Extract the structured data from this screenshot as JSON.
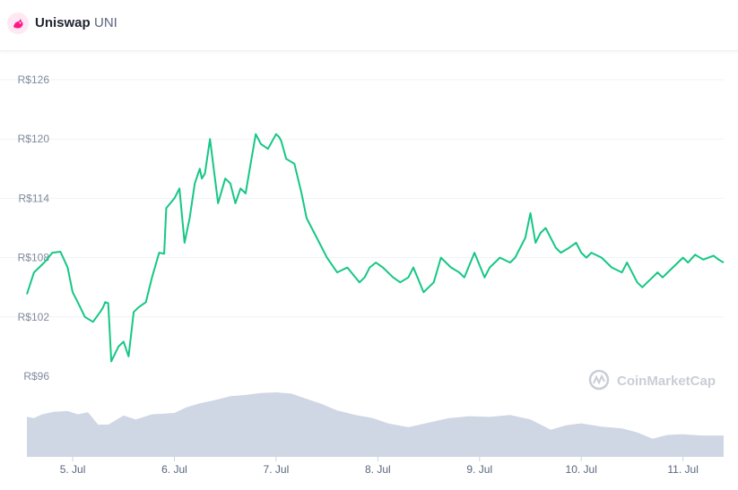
{
  "header": {
    "name": "Uniswap",
    "symbol": "UNI",
    "logo_icon": "uniswap-unicorn-icon"
  },
  "watermark": {
    "text": "CoinMarketCap",
    "icon": "coinmarketcap-logo-icon"
  },
  "colors": {
    "line": "#16c784",
    "volume": "#cfd6e4",
    "grid": "#eff2f5"
  },
  "chart_data": {
    "type": "line",
    "title": "",
    "xlabel": "",
    "ylabel": "",
    "ylim": [
      96,
      126
    ],
    "grid": true,
    "yticks": [
      {
        "value": 126,
        "label": "R$126"
      },
      {
        "value": 120,
        "label": "R$120"
      },
      {
        "value": 114,
        "label": "R$114"
      },
      {
        "value": 108,
        "label": "R$108"
      },
      {
        "value": 102,
        "label": "R$102"
      },
      {
        "value": 96,
        "label": "R$96"
      }
    ],
    "xticks": [
      {
        "day": 5,
        "label": "5. Jul"
      },
      {
        "day": 6,
        "label": "6. Jul"
      },
      {
        "day": 7,
        "label": "7. Jul"
      },
      {
        "day": 8,
        "label": "8. Jul"
      },
      {
        "day": 9,
        "label": "9. Jul"
      },
      {
        "day": 10,
        "label": "10. Jul"
      },
      {
        "day": 11,
        "label": "11. Jul"
      }
    ],
    "series": [
      {
        "kind": "price",
        "x": [
          4.55,
          4.62,
          4.72,
          4.8,
          4.88,
          4.95,
          5.0,
          5.05,
          5.12,
          5.2,
          5.27,
          5.3,
          5.32,
          5.35,
          5.38,
          5.45,
          5.5,
          5.55,
          5.6,
          5.65,
          5.72,
          5.78,
          5.85,
          5.9,
          5.92,
          6.0,
          6.05,
          6.1,
          6.15,
          6.2,
          6.25,
          6.27,
          6.3,
          6.35,
          6.43,
          6.5,
          6.55,
          6.6,
          6.65,
          6.7,
          6.75,
          6.8,
          6.85,
          6.92,
          7.0,
          7.03,
          7.05,
          7.1,
          7.18,
          7.25,
          7.3,
          7.4,
          7.5,
          7.6,
          7.7,
          7.78,
          7.82,
          7.87,
          7.92,
          7.98,
          8.05,
          8.15,
          8.22,
          8.3,
          8.35,
          8.45,
          8.55,
          8.62,
          8.72,
          8.8,
          8.85,
          8.95,
          9.05,
          9.1,
          9.2,
          9.3,
          9.35,
          9.45,
          9.5,
          9.55,
          9.6,
          9.65,
          9.75,
          9.8,
          9.88,
          9.95,
          10.0,
          10.05,
          10.1,
          10.2,
          10.3,
          10.4,
          10.45,
          10.5,
          10.55,
          10.6,
          10.65,
          10.7,
          10.75,
          10.8,
          10.85,
          10.9,
          10.95,
          11.0,
          11.05,
          11.12,
          11.2,
          11.3,
          11.35,
          11.4
        ],
        "y": [
          104.3,
          106.5,
          107.5,
          108.5,
          108.6,
          107.0,
          104.5,
          103.5,
          102.0,
          101.5,
          102.5,
          103.0,
          103.5,
          103.4,
          97.5,
          99.0,
          99.5,
          98.0,
          102.5,
          103.0,
          103.5,
          106.0,
          108.5,
          108.4,
          113.0,
          114.0,
          115.0,
          109.5,
          112.0,
          115.5,
          117.0,
          116.0,
          116.5,
          120.0,
          113.5,
          116.0,
          115.5,
          113.5,
          115.0,
          114.5,
          117.5,
          120.5,
          119.5,
          119.0,
          120.5,
          120.2,
          119.8,
          118.0,
          117.5,
          114.5,
          112.0,
          110.0,
          108.0,
          106.5,
          107.0,
          106.0,
          105.5,
          106.0,
          107.0,
          107.5,
          107.0,
          106.0,
          105.5,
          106.0,
          107.0,
          104.5,
          105.5,
          108.0,
          107.0,
          106.5,
          106.0,
          108.5,
          106.0,
          107.0,
          108.0,
          107.5,
          108.0,
          110.0,
          112.5,
          109.5,
          110.5,
          111.0,
          109.0,
          108.5,
          109.0,
          109.5,
          108.5,
          108.0,
          108.5,
          108.0,
          107.0,
          106.5,
          107.5,
          106.5,
          105.5,
          105.0,
          105.5,
          106.0,
          106.5,
          106.0,
          106.5,
          107.0,
          107.5,
          108.0,
          107.5,
          108.3,
          107.8,
          108.2,
          107.8,
          107.5
        ]
      },
      {
        "kind": "volume",
        "x": [
          4.55,
          4.62,
          4.7,
          4.82,
          4.95,
          5.05,
          5.15,
          5.25,
          5.35,
          5.5,
          5.62,
          5.78,
          5.9,
          6.0,
          6.12,
          6.25,
          6.4,
          6.55,
          6.7,
          6.85,
          7.0,
          7.15,
          7.3,
          7.45,
          7.6,
          7.78,
          7.95,
          8.1,
          8.3,
          8.5,
          8.7,
          8.9,
          9.1,
          9.3,
          9.5,
          9.7,
          9.85,
          10.0,
          10.2,
          10.4,
          10.55,
          10.7,
          10.85,
          11.0,
          11.2,
          11.4
        ],
        "y": [
          0.62,
          0.6,
          0.66,
          0.7,
          0.71,
          0.66,
          0.69,
          0.5,
          0.5,
          0.64,
          0.58,
          0.66,
          0.67,
          0.68,
          0.77,
          0.83,
          0.88,
          0.94,
          0.96,
          0.99,
          1.0,
          0.98,
          0.9,
          0.82,
          0.72,
          0.65,
          0.6,
          0.52,
          0.46,
          0.53,
          0.6,
          0.63,
          0.62,
          0.65,
          0.58,
          0.42,
          0.49,
          0.52,
          0.47,
          0.44,
          0.38,
          0.28,
          0.34,
          0.35,
          0.33,
          0.33
        ]
      }
    ]
  }
}
